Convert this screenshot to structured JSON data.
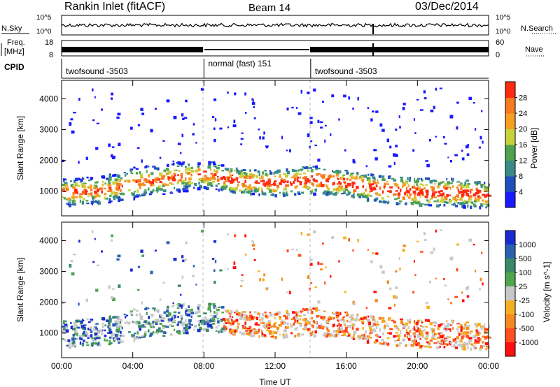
{
  "header": {
    "station": "Rankin Inlet (fitACF)",
    "beam": "Beam 14",
    "date": "03/Dec/2014"
  },
  "noise_panel": {
    "left_label": "N.Sky",
    "right_label": "N.Search",
    "y_tick_top": "10^5",
    "y_tick_bottom": "10^0"
  },
  "freq_panel": {
    "left_label_line1": "Freq.",
    "left_label_line2": "[MHz]",
    "right_label": "Nave",
    "left_ticks": [
      "18",
      "8"
    ],
    "right_ticks": [
      "60",
      "0"
    ]
  },
  "cpid_panel": {
    "label": "CPID",
    "segments": [
      {
        "name": "twofsound",
        "id": "-3503",
        "start_hour": 0,
        "end_hour": 8
      },
      {
        "name": "normal (fast)",
        "id": "151",
        "start_hour": 8,
        "end_hour": 14
      },
      {
        "name": "twofsound",
        "id": "-3503",
        "start_hour": 14,
        "end_hour": 24
      }
    ]
  },
  "chart_data": [
    {
      "type": "heatmap",
      "title": "",
      "ylabel": "Slant Range [km]",
      "ylim": [
        200,
        4600
      ],
      "yticks": [
        1000,
        2000,
        3000,
        4000
      ],
      "xlim": [
        0,
        24
      ],
      "xticks": [
        0,
        4,
        8,
        12,
        16,
        20,
        24
      ],
      "colorbar": {
        "label": "Power [dB]",
        "ticks": [
          4,
          8,
          12,
          16,
          20,
          24,
          28
        ],
        "range": [
          0,
          32
        ],
        "colors": [
          "#1a1aff",
          "#2050c0",
          "#3a8a8a",
          "#4fa24f",
          "#c8d23c",
          "#f5a020",
          "#f57a20",
          "#ff2a10"
        ]
      },
      "band": [
        {
          "hour": 0,
          "center": 1000,
          "width": 900
        },
        {
          "hour": 2,
          "center": 1050,
          "width": 900
        },
        {
          "hour": 4,
          "center": 1300,
          "width": 1000
        },
        {
          "hour": 6,
          "center": 1450,
          "width": 1000
        },
        {
          "hour": 8,
          "center": 1600,
          "width": 900
        },
        {
          "hour": 10,
          "center": 1350,
          "width": 800
        },
        {
          "hour": 12,
          "center": 1300,
          "width": 800
        },
        {
          "hour": 14,
          "center": 1400,
          "width": 900
        },
        {
          "hour": 16,
          "center": 1300,
          "width": 800
        },
        {
          "hour": 18,
          "center": 1100,
          "width": 900
        },
        {
          "hour": 20,
          "center": 1000,
          "width": 900
        },
        {
          "hour": 22,
          "center": 1000,
          "width": 900
        },
        {
          "hour": 24,
          "center": 900,
          "width": 800
        }
      ]
    },
    {
      "type": "heatmap",
      "title": "",
      "ylabel": "Slant Range [km]",
      "xlabel": "Time UT",
      "ylim": [
        200,
        4600
      ],
      "yticks": [
        1000,
        2000,
        3000,
        4000
      ],
      "xlim": [
        0,
        24
      ],
      "xticks": [
        0,
        4,
        8,
        12,
        16,
        20,
        24
      ],
      "xtick_labels": [
        "00:00",
        "04:00",
        "08:00",
        "12:00",
        "16:00",
        "20:00",
        "00:00"
      ],
      "colorbar": {
        "label": "Velocity [m s^-1]",
        "ticks": [
          "1000",
          "500",
          "100",
          "25",
          "-25",
          "-100",
          "-500",
          "-1000"
        ],
        "colors": [
          "#1a2ad0",
          "#2a60b0",
          "#3a8a6a",
          "#4fa64f",
          "#c8c8c8",
          "#f5b020",
          "#f58a20",
          "#ff5020",
          "#ff1010"
        ]
      }
    }
  ]
}
